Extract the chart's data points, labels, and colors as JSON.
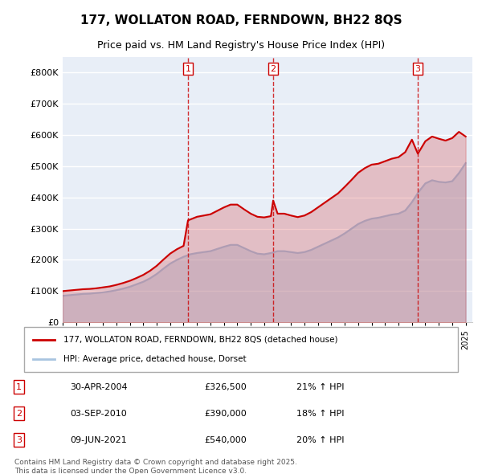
{
  "title": "177, WOLLATON ROAD, FERNDOWN, BH22 8QS",
  "subtitle": "Price paid vs. HM Land Registry's House Price Index (HPI)",
  "xlabel": "",
  "ylabel": "",
  "ylim": [
    0,
    850000
  ],
  "yticks": [
    0,
    100000,
    200000,
    300000,
    400000,
    500000,
    600000,
    700000,
    800000
  ],
  "ytick_labels": [
    "£0",
    "£100K",
    "£200K",
    "£300K",
    "£400K",
    "£500K",
    "£600K",
    "£700K",
    "£800K"
  ],
  "hpi_color": "#a8c4e0",
  "price_color": "#cc0000",
  "vline_color": "#cc0000",
  "background_color": "#ffffff",
  "plot_bg_color": "#e8eef7",
  "grid_color": "#ffffff",
  "legend_label_price": "177, WOLLATON ROAD, FERNDOWN, BH22 8QS (detached house)",
  "legend_label_hpi": "HPI: Average price, detached house, Dorset",
  "transactions": [
    {
      "num": 1,
      "date": "30-APR-2004",
      "price": 326500,
      "pct": "21%",
      "x": 2004.33
    },
    {
      "num": 2,
      "date": "03-SEP-2010",
      "price": 390000,
      "pct": "18%",
      "x": 2010.67
    },
    {
      "num": 3,
      "date": "09-JUN-2021",
      "price": 540000,
      "pct": "20%",
      "x": 2021.44
    }
  ],
  "footer": "Contains HM Land Registry data © Crown copyright and database right 2025.\nThis data is licensed under the Open Government Licence v3.0.",
  "hpi_x": [
    1995,
    1995.5,
    1996,
    1996.5,
    1997,
    1997.5,
    1998,
    1998.5,
    1999,
    1999.5,
    2000,
    2000.5,
    2001,
    2001.5,
    2002,
    2002.5,
    2003,
    2003.5,
    2004,
    2004.5,
    2005,
    2005.5,
    2006,
    2006.5,
    2007,
    2007.5,
    2008,
    2008.5,
    2009,
    2009.5,
    2010,
    2010.5,
    2011,
    2011.5,
    2012,
    2012.5,
    2013,
    2013.5,
    2014,
    2014.5,
    2015,
    2015.5,
    2016,
    2016.5,
    2017,
    2017.5,
    2018,
    2018.5,
    2019,
    2019.5,
    2020,
    2020.5,
    2021,
    2021.5,
    2022,
    2022.5,
    2023,
    2023.5,
    2024,
    2024.5,
    2025
  ],
  "hpi_y": [
    85000,
    87000,
    89000,
    91000,
    92000,
    94000,
    96000,
    99000,
    103000,
    108000,
    114000,
    122000,
    130000,
    141000,
    155000,
    172000,
    188000,
    200000,
    210000,
    218000,
    222000,
    225000,
    228000,
    235000,
    242000,
    248000,
    248000,
    238000,
    228000,
    220000,
    218000,
    222000,
    228000,
    228000,
    225000,
    222000,
    225000,
    232000,
    242000,
    252000,
    262000,
    272000,
    285000,
    300000,
    315000,
    325000,
    332000,
    335000,
    340000,
    345000,
    348000,
    358000,
    385000,
    418000,
    445000,
    455000,
    450000,
    448000,
    452000,
    478000,
    510000
  ],
  "price_x": [
    1995,
    1995.5,
    1996,
    1996.5,
    1997,
    1997.5,
    1998,
    1998.5,
    1999,
    1999.5,
    2000,
    2000.5,
    2001,
    2001.5,
    2002,
    2002.5,
    2003,
    2003.5,
    2004,
    2004.33,
    2004.33,
    2005,
    2005.5,
    2006,
    2006.5,
    2007,
    2007.5,
    2008,
    2008.5,
    2009,
    2009.5,
    2010,
    2010.5,
    2010.67,
    2010.67,
    2011,
    2011.5,
    2012,
    2012.5,
    2013,
    2013.5,
    2014,
    2014.5,
    2015,
    2015.5,
    2016,
    2016.5,
    2017,
    2017.5,
    2018,
    2018.5,
    2019,
    2019.5,
    2020,
    2020.5,
    2021,
    2021.44,
    2021.44,
    2022,
    2022.5,
    2023,
    2023.5,
    2024,
    2024.5,
    2025
  ],
  "price_y": [
    100000,
    102000,
    104000,
    106000,
    107000,
    109000,
    112000,
    115000,
    120000,
    126000,
    133000,
    142000,
    152000,
    165000,
    181000,
    201000,
    220000,
    234000,
    245000,
    326500,
    326500,
    338000,
    342000,
    346000,
    357000,
    368000,
    377000,
    377000,
    362000,
    348000,
    338000,
    336000,
    340000,
    390000,
    390000,
    348000,
    348000,
    342000,
    337000,
    342000,
    353000,
    368000,
    383000,
    398000,
    413000,
    434000,
    456000,
    479000,
    494000,
    505000,
    508000,
    516000,
    524000,
    529000,
    545000,
    585000,
    540000,
    540000,
    580000,
    595000,
    588000,
    582000,
    590000,
    610000,
    595000
  ],
  "xlim": [
    1995,
    2025.5
  ],
  "xticks": [
    1995,
    1996,
    1997,
    1998,
    1999,
    2000,
    2001,
    2002,
    2003,
    2004,
    2005,
    2006,
    2007,
    2008,
    2009,
    2010,
    2011,
    2012,
    2013,
    2014,
    2015,
    2016,
    2017,
    2018,
    2019,
    2020,
    2021,
    2022,
    2023,
    2024,
    2025
  ]
}
